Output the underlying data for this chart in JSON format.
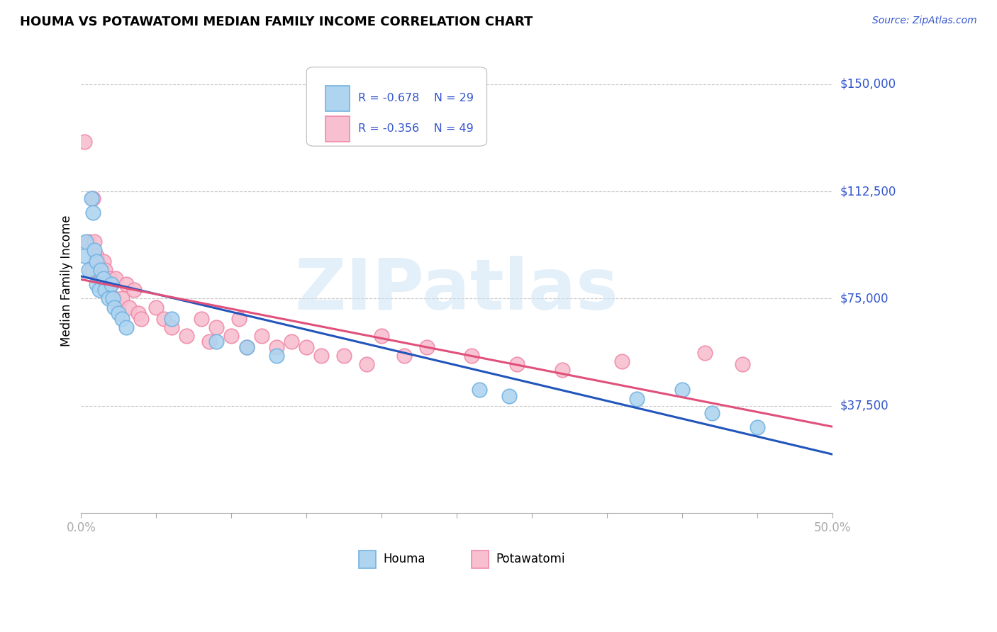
{
  "title": "HOUMA VS POTAWATOMI MEDIAN FAMILY INCOME CORRELATION CHART",
  "source": "Source: ZipAtlas.com",
  "ylabel": "Median Family Income",
  "xlim": [
    0.0,
    0.5
  ],
  "ylim": [
    0,
    162500
  ],
  "xticks": [
    0.0,
    0.05,
    0.1,
    0.15,
    0.2,
    0.25,
    0.3,
    0.35,
    0.4,
    0.45,
    0.5
  ],
  "xticklabels": [
    "0.0%",
    "",
    "",
    "",
    "",
    "",
    "",
    "",
    "",
    "",
    "50.0%"
  ],
  "ytick_vals": [
    37500,
    75000,
    112500,
    150000
  ],
  "ytick_labels": [
    "$37,500",
    "$75,000",
    "$112,500",
    "$150,000"
  ],
  "grid_color": "#c8c8c8",
  "background_color": "#ffffff",
  "houma_face_color": "#aed4f0",
  "houma_edge_color": "#74b3e0",
  "potawatomi_face_color": "#f7bfcf",
  "potawatomi_edge_color": "#f08aaa",
  "houma_line_color": "#2255bb",
  "potawatomi_line_color": "#e0507a",
  "houma_R": -0.678,
  "houma_N": 29,
  "potawatomi_R": -0.356,
  "potawatomi_N": 49,
  "legend_text_color": "#3355cc",
  "axis_text_color": "#3355cc",
  "watermark": "ZIPatlas",
  "houma_x": [
    0.002,
    0.003,
    0.005,
    0.007,
    0.008,
    0.009,
    0.01,
    0.01,
    0.012,
    0.013,
    0.015,
    0.016,
    0.018,
    0.02,
    0.021,
    0.022,
    0.025,
    0.027,
    0.03,
    0.06,
    0.09,
    0.11,
    0.13,
    0.265,
    0.285,
    0.37,
    0.4,
    0.42,
    0.45
  ],
  "houma_y": [
    90000,
    95000,
    85000,
    110000,
    105000,
    92000,
    88000,
    80000,
    78000,
    85000,
    82000,
    78000,
    75000,
    80000,
    75000,
    72000,
    70000,
    68000,
    65000,
    68000,
    60000,
    58000,
    55000,
    43000,
    41000,
    40000,
    43000,
    35000,
    30000
  ],
  "potawatomi_x": [
    0.002,
    0.005,
    0.007,
    0.008,
    0.009,
    0.01,
    0.011,
    0.013,
    0.014,
    0.015,
    0.016,
    0.018,
    0.019,
    0.02,
    0.022,
    0.023,
    0.025,
    0.027,
    0.03,
    0.032,
    0.035,
    0.038,
    0.04,
    0.05,
    0.055,
    0.06,
    0.07,
    0.08,
    0.085,
    0.09,
    0.1,
    0.105,
    0.11,
    0.12,
    0.13,
    0.14,
    0.15,
    0.16,
    0.175,
    0.19,
    0.2,
    0.215,
    0.23,
    0.26,
    0.29,
    0.32,
    0.36,
    0.415,
    0.44
  ],
  "potawatomi_y": [
    130000,
    95000,
    85000,
    110000,
    95000,
    90000,
    88000,
    85000,
    80000,
    88000,
    85000,
    78000,
    82000,
    80000,
    75000,
    82000,
    72000,
    75000,
    80000,
    72000,
    78000,
    70000,
    68000,
    72000,
    68000,
    65000,
    62000,
    68000,
    60000,
    65000,
    62000,
    68000,
    58000,
    62000,
    58000,
    60000,
    58000,
    55000,
    55000,
    52000,
    62000,
    55000,
    58000,
    55000,
    52000,
    50000,
    53000,
    56000,
    52000
  ]
}
